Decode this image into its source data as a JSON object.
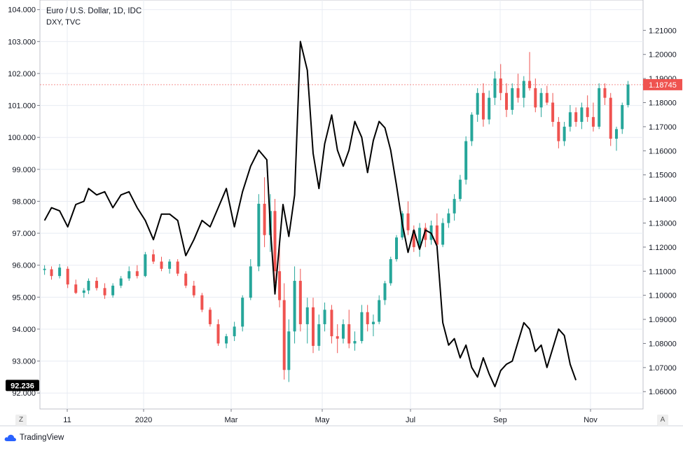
{
  "header": {
    "symbol_title": "Euro / U.S. Dollar, 1D, IDC",
    "overlay_label": "DXY, TVC"
  },
  "footer": {
    "brand": "TradingView",
    "left_button": "Z",
    "right_button": "A"
  },
  "colors": {
    "up": "#26a69a",
    "down": "#ef5350",
    "overlay_line": "#000000",
    "grid": "#e8ecf3",
    "last_price_tag": "#ef5350",
    "dxy_tag": "#000000"
  },
  "chart_data": {
    "type": "candlestick-with-overlay",
    "grid": true,
    "x_tick_labels": [
      "11",
      "2020",
      "Mar",
      "May",
      "Jul",
      "Sep",
      "Nov"
    ],
    "left_axis": {
      "series": "DXY, TVC",
      "range": [
        91.5,
        104.3
      ],
      "ticks": [
        "92.000",
        "93.000",
        "94.000",
        "95.000",
        "96.000",
        "97.000",
        "98.000",
        "99.000",
        "100.000",
        "101.000",
        "102.000",
        "103.000",
        "104.000"
      ],
      "last_value_label": "92.236"
    },
    "right_axis": {
      "series": "Euro / U.S. Dollar, 1D, IDC",
      "range": [
        1.0528,
        1.2226
      ],
      "ticks": [
        "1.06000",
        "1.07000",
        "1.08000",
        "1.09000",
        "1.10000",
        "1.11000",
        "1.12000",
        "1.13000",
        "1.14000",
        "1.15000",
        "1.16000",
        "1.17000",
        "1.18000",
        "1.19000",
        "1.20000",
        "1.21000"
      ],
      "last_value_label": "1.18745"
    },
    "dxy_series": {
      "name": "DXY, TVC",
      "points": [
        [
          "2019-10-01",
          97.4
        ],
        [
          "2019-10-07",
          97.8
        ],
        [
          "2019-10-14",
          97.7
        ],
        [
          "2019-10-21",
          97.2
        ],
        [
          "2019-10-28",
          97.9
        ],
        [
          "2019-11-04",
          98.0
        ],
        [
          "2019-11-08",
          98.4
        ],
        [
          "2019-11-15",
          98.2
        ],
        [
          "2019-11-22",
          98.3
        ],
        [
          "2019-11-29",
          97.8
        ],
        [
          "2019-12-06",
          98.2
        ],
        [
          "2019-12-13",
          98.3
        ],
        [
          "2019-12-20",
          97.8
        ],
        [
          "2019-12-27",
          97.4
        ],
        [
          "2020-01-03",
          96.8
        ],
        [
          "2020-01-10",
          97.6
        ],
        [
          "2020-01-17",
          97.6
        ],
        [
          "2020-01-24",
          97.4
        ],
        [
          "2020-01-31",
          96.3
        ],
        [
          "2020-02-07",
          96.8
        ],
        [
          "2020-02-14",
          97.4
        ],
        [
          "2020-02-21",
          97.2
        ],
        [
          "2020-02-28",
          97.8
        ],
        [
          "2020-03-06",
          98.4
        ],
        [
          "2020-03-13",
          97.2
        ],
        [
          "2020-03-20",
          98.3
        ],
        [
          "2020-03-27",
          99.1
        ],
        [
          "2020-04-03",
          99.6
        ],
        [
          "2020-04-10",
          99.3
        ],
        [
          "2020-04-13",
          97.2
        ],
        [
          "2020-04-17",
          95.1
        ],
        [
          "2020-04-24",
          97.9
        ],
        [
          "2020-04-29",
          96.9
        ],
        [
          "2020-05-04",
          98.2
        ],
        [
          "2020-05-09",
          103.0
        ],
        [
          "2020-05-15",
          102.1
        ],
        [
          "2020-05-20",
          99.5
        ],
        [
          "2020-05-25",
          98.4
        ],
        [
          "2020-05-30",
          99.8
        ],
        [
          "2020-06-05",
          100.7
        ],
        [
          "2020-06-10",
          99.6
        ],
        [
          "2020-06-15",
          99.1
        ],
        [
          "2020-06-20",
          99.6
        ],
        [
          "2020-06-25",
          100.5
        ],
        [
          "2020-07-01",
          100.0
        ],
        [
          "2020-07-06",
          98.9
        ],
        [
          "2020-07-11",
          99.9
        ],
        [
          "2020-07-16",
          100.5
        ],
        [
          "2020-07-21",
          100.3
        ],
        [
          "2020-07-26",
          99.6
        ],
        [
          "2020-07-31",
          98.5
        ],
        [
          "2020-08-05",
          97.3
        ],
        [
          "2020-08-10",
          96.4
        ],
        [
          "2020-08-15",
          97.1
        ],
        [
          "2020-08-20",
          96.5
        ],
        [
          "2020-08-25",
          97.1
        ],
        [
          "2020-08-30",
          97.0
        ],
        [
          "2020-09-04",
          96.6
        ],
        [
          "2020-09-09",
          94.2
        ],
        [
          "2020-09-14",
          93.5
        ],
        [
          "2020-09-19",
          93.7
        ],
        [
          "2020-09-24",
          93.1
        ],
        [
          "2020-09-29",
          93.5
        ],
        [
          "2020-10-04",
          92.8
        ],
        [
          "2020-10-09",
          92.5
        ],
        [
          "2020-10-14",
          93.1
        ],
        [
          "2020-10-19",
          92.6
        ],
        [
          "2020-10-24",
          92.2
        ],
        [
          "2020-10-29",
          92.7
        ],
        [
          "2020-11-03",
          92.9
        ],
        [
          "2020-11-08",
          93.0
        ],
        [
          "2020-11-13",
          93.6
        ],
        [
          "2020-11-18",
          94.2
        ],
        [
          "2020-11-23",
          94.0
        ],
        [
          "2020-11-28",
          93.3
        ],
        [
          "2020-12-03",
          93.5
        ],
        [
          "2020-12-08",
          92.8
        ],
        [
          "2020-12-13",
          93.4
        ],
        [
          "2020-12-18",
          94.0
        ],
        [
          "2020-12-23",
          93.8
        ],
        [
          "2020-12-28",
          92.9
        ],
        [
          "2021-01-02",
          92.4
        ]
      ]
    },
    "eurusd_series": {
      "name": "Euro / U.S. Dollar, 1D, IDC",
      "candles": [
        [
          "2019-10-01",
          1.1105,
          1.1125,
          1.1085,
          1.111
        ],
        [
          "2019-10-07",
          1.1108,
          1.112,
          1.1065,
          1.108
        ],
        [
          "2019-10-14",
          1.108,
          1.113,
          1.107,
          1.1115
        ],
        [
          "2019-10-21",
          1.111,
          1.112,
          1.103,
          1.1045
        ],
        [
          "2019-10-28",
          1.1045,
          1.1065,
          1.1005,
          1.101
        ],
        [
          "2019-11-04",
          1.101,
          1.103,
          1.099,
          1.102
        ],
        [
          "2019-11-08",
          1.102,
          1.107,
          1.1005,
          1.106
        ],
        [
          "2019-11-15",
          1.106,
          1.1075,
          1.102,
          1.103
        ],
        [
          "2019-11-22",
          1.103,
          1.105,
          1.0985,
          1.1
        ],
        [
          "2019-11-29",
          1.1,
          1.105,
          1.099,
          1.104
        ],
        [
          "2019-12-06",
          1.104,
          1.108,
          1.103,
          1.107
        ],
        [
          "2019-12-13",
          1.107,
          1.112,
          1.106,
          1.11
        ],
        [
          "2019-12-20",
          1.11,
          1.1125,
          1.107,
          1.108
        ],
        [
          "2019-12-27",
          1.108,
          1.118,
          1.1075,
          1.117
        ],
        [
          "2020-01-03",
          1.117,
          1.119,
          1.113,
          1.114
        ],
        [
          "2020-01-10",
          1.114,
          1.116,
          1.11,
          1.111
        ],
        [
          "2020-01-17",
          1.111,
          1.115,
          1.109,
          1.114
        ],
        [
          "2020-01-24",
          1.114,
          1.115,
          1.108,
          1.109
        ],
        [
          "2020-01-31",
          1.109,
          1.11,
          1.103,
          1.104
        ],
        [
          "2020-02-07",
          1.104,
          1.106,
          1.099,
          1.1
        ],
        [
          "2020-02-14",
          1.1,
          1.101,
          1.093,
          1.094
        ],
        [
          "2020-02-21",
          1.094,
          1.095,
          1.087,
          1.088
        ],
        [
          "2020-02-28",
          1.088,
          1.09,
          1.079,
          1.08
        ],
        [
          "2020-03-06",
          1.08,
          1.084,
          1.078,
          1.083
        ],
        [
          "2020-03-13",
          1.083,
          1.089,
          1.081,
          1.087
        ],
        [
          "2020-03-20",
          1.087,
          1.1,
          1.085,
          1.099
        ],
        [
          "2020-03-27",
          1.099,
          1.115,
          1.098,
          1.112
        ],
        [
          "2020-04-03",
          1.112,
          1.142,
          1.11,
          1.138
        ],
        [
          "2020-04-08",
          1.138,
          1.149,
          1.12,
          1.125
        ],
        [
          "2020-04-13",
          1.125,
          1.142,
          1.118,
          1.135
        ],
        [
          "2020-04-17",
          1.135,
          1.14,
          1.105,
          1.11
        ],
        [
          "2020-04-21",
          1.11,
          1.123,
          1.095,
          1.098
        ],
        [
          "2020-04-25",
          1.098,
          1.105,
          1.065,
          1.069
        ],
        [
          "2020-04-29",
          1.069,
          1.09,
          1.064,
          1.085
        ],
        [
          "2020-05-04",
          1.085,
          1.112,
          1.08,
          1.106
        ],
        [
          "2020-05-09",
          1.106,
          1.111,
          1.085,
          1.088
        ],
        [
          "2020-05-15",
          1.088,
          1.099,
          1.08,
          1.095
        ],
        [
          "2020-05-20",
          1.095,
          1.099,
          1.076,
          1.079
        ],
        [
          "2020-05-25",
          1.079,
          1.092,
          1.077,
          1.088
        ],
        [
          "2020-05-30",
          1.088,
          1.097,
          1.085,
          1.094
        ],
        [
          "2020-06-05",
          1.094,
          1.096,
          1.08,
          1.083
        ],
        [
          "2020-06-10",
          1.083,
          1.088,
          1.076,
          1.082
        ],
        [
          "2020-06-15",
          1.082,
          1.09,
          1.08,
          1.088
        ],
        [
          "2020-06-20",
          1.088,
          1.094,
          1.078,
          1.08
        ],
        [
          "2020-06-25",
          1.08,
          1.085,
          1.077,
          1.081
        ],
        [
          "2020-07-01",
          1.081,
          1.096,
          1.08,
          1.093
        ],
        [
          "2020-07-06",
          1.093,
          1.096,
          1.085,
          1.088
        ],
        [
          "2020-07-11",
          1.088,
          1.092,
          1.083,
          1.089
        ],
        [
          "2020-07-16",
          1.089,
          1.1,
          1.088,
          1.098
        ],
        [
          "2020-07-21",
          1.098,
          1.106,
          1.096,
          1.105
        ],
        [
          "2020-07-26",
          1.105,
          1.116,
          1.104,
          1.115
        ],
        [
          "2020-07-31",
          1.115,
          1.125,
          1.114,
          1.124
        ],
        [
          "2020-08-05",
          1.124,
          1.135,
          1.123,
          1.134
        ],
        [
          "2020-08-10",
          1.134,
          1.139,
          1.125,
          1.127
        ],
        [
          "2020-08-15",
          1.127,
          1.129,
          1.118,
          1.12
        ],
        [
          "2020-08-20",
          1.12,
          1.13,
          1.116,
          1.128
        ],
        [
          "2020-08-25",
          1.128,
          1.13,
          1.12,
          1.123
        ],
        [
          "2020-08-30",
          1.123,
          1.131,
          1.121,
          1.129
        ],
        [
          "2020-09-04",
          1.129,
          1.134,
          1.119,
          1.121
        ],
        [
          "2020-09-09",
          1.121,
          1.132,
          1.12,
          1.13
        ],
        [
          "2020-09-14",
          1.13,
          1.136,
          1.128,
          1.134
        ],
        [
          "2020-09-19",
          1.134,
          1.142,
          1.131,
          1.14
        ],
        [
          "2020-09-24",
          1.14,
          1.15,
          1.139,
          1.148
        ],
        [
          "2020-09-29",
          1.148,
          1.166,
          1.146,
          1.164
        ],
        [
          "2020-10-04",
          1.164,
          1.176,
          1.162,
          1.175
        ],
        [
          "2020-10-09",
          1.175,
          1.186,
          1.172,
          1.184
        ],
        [
          "2020-10-14",
          1.184,
          1.188,
          1.17,
          1.173
        ],
        [
          "2020-10-19",
          1.173,
          1.185,
          1.171,
          1.182
        ],
        [
          "2020-10-24",
          1.182,
          1.193,
          1.179,
          1.19
        ],
        [
          "2020-10-29",
          1.19,
          1.196,
          1.181,
          1.184
        ],
        [
          "2020-11-03",
          1.184,
          1.188,
          1.174,
          1.177
        ],
        [
          "2020-11-08",
          1.177,
          1.188,
          1.175,
          1.186
        ],
        [
          "2020-11-13",
          1.186,
          1.192,
          1.18,
          1.182
        ],
        [
          "2020-11-18",
          1.182,
          1.191,
          1.178,
          1.189
        ],
        [
          "2020-11-23",
          1.189,
          1.201,
          1.185,
          1.186
        ],
        [
          "2020-11-28",
          1.186,
          1.19,
          1.176,
          1.178
        ],
        [
          "2020-12-03",
          1.178,
          1.186,
          1.174,
          1.184
        ],
        [
          "2020-12-08",
          1.184,
          1.187,
          1.179,
          1.18
        ],
        [
          "2020-12-13",
          1.18,
          1.184,
          1.17,
          1.172
        ],
        [
          "2020-12-18",
          1.172,
          1.174,
          1.161,
          1.164
        ],
        [
          "2020-12-23",
          1.164,
          1.172,
          1.162,
          1.17
        ],
        [
          "2020-12-28",
          1.17,
          1.179,
          1.168,
          1.176
        ],
        [
          "2021-01-02",
          1.176,
          1.178,
          1.17,
          1.172
        ],
        [
          "2021-01-07",
          1.172,
          1.18,
          1.169,
          1.178
        ],
        [
          "2021-01-12",
          1.178,
          1.183,
          1.172,
          1.174
        ],
        [
          "2021-01-17",
          1.174,
          1.18,
          1.168,
          1.17
        ],
        [
          "2021-01-22",
          1.17,
          1.188,
          1.169,
          1.186
        ],
        [
          "2021-01-27",
          1.186,
          1.188,
          1.179,
          1.182
        ],
        [
          "2021-02-01",
          1.182,
          1.184,
          1.162,
          1.165
        ],
        [
          "2021-02-06",
          1.165,
          1.17,
          1.16,
          1.169
        ],
        [
          "2021-02-11",
          1.169,
          1.18,
          1.167,
          1.179
        ],
        [
          "2021-02-16",
          1.179,
          1.189,
          1.178,
          1.1875
        ]
      ]
    }
  }
}
